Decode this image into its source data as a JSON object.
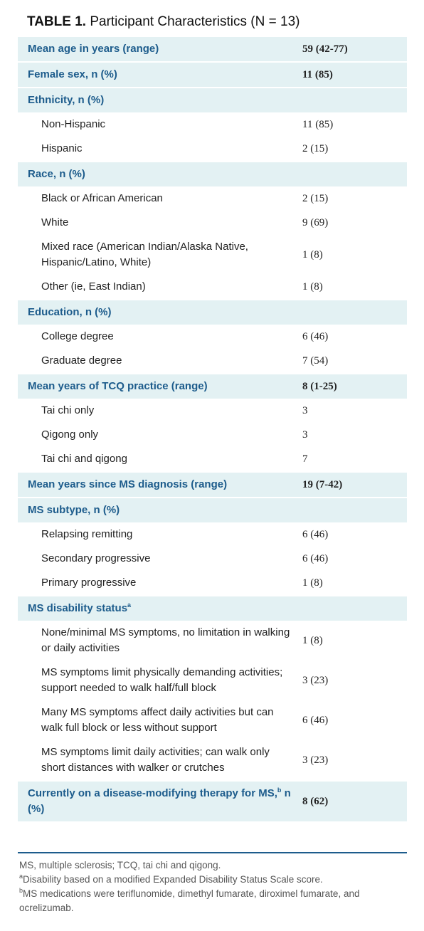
{
  "title": {
    "label": "TABLE 1.",
    "text": "Participant Characteristics (N = 13)"
  },
  "table": {
    "rows": [
      {
        "type": "header",
        "label": "Mean age in years (range)",
        "value": "59 (42-77)"
      },
      {
        "type": "header",
        "label": "Female sex, n (%)",
        "value": "11 (85)"
      },
      {
        "type": "header",
        "label": "Ethnicity, n (%)"
      },
      {
        "type": "item",
        "label": "Non-Hispanic",
        "value": "11 (85)"
      },
      {
        "type": "item",
        "label": "Hispanic",
        "value": "2 (15)"
      },
      {
        "type": "header",
        "label": "Race, n (%)"
      },
      {
        "type": "item",
        "label": "Black or African American",
        "value": "2 (15)"
      },
      {
        "type": "item",
        "label": "White",
        "value": "9 (69)"
      },
      {
        "type": "item",
        "label": "Mixed race (American Indian/Alaska Native, Hispanic/Latino, White)",
        "value": "1 (8)"
      },
      {
        "type": "item",
        "label": "Other (ie, East Indian)",
        "value": "1 (8)"
      },
      {
        "type": "header",
        "label": "Education, n (%)"
      },
      {
        "type": "item",
        "label": "College degree",
        "value": "6 (46)"
      },
      {
        "type": "item",
        "label": "Graduate degree",
        "value": "7 (54)"
      },
      {
        "type": "header",
        "label": "Mean years of TCQ practice (range)",
        "value": "8 (1-25)"
      },
      {
        "type": "item",
        "label": "Tai chi only",
        "value": "3"
      },
      {
        "type": "item",
        "label": "Qigong only",
        "value": "3"
      },
      {
        "type": "item",
        "label": "Tai chi and qigong",
        "value": "7"
      },
      {
        "type": "header",
        "label": "Mean years since MS diagnosis (range)",
        "value": "19 (7-42)"
      },
      {
        "type": "header",
        "label": "MS subtype, n (%)"
      },
      {
        "type": "item",
        "label": "Relapsing remitting",
        "value": "6 (46)"
      },
      {
        "type": "item",
        "label": "Secondary progressive",
        "value": "6 (46)"
      },
      {
        "type": "item",
        "label": "Primary progressive",
        "value": "1 (8)"
      },
      {
        "type": "header",
        "label": "MS disability status",
        "sup": "a"
      },
      {
        "type": "item",
        "label": "None/minimal MS symptoms, no limitation in walking or daily activities",
        "value": "1 (8)"
      },
      {
        "type": "item",
        "label": "MS symptoms limit physically demanding activities; support needed to walk half/full block",
        "value": "3 (23)"
      },
      {
        "type": "item",
        "label": "Many MS symptoms affect daily activities but can walk full block or less without support",
        "value": "6 (46)"
      },
      {
        "type": "item",
        "label": "MS symptoms limit daily activities; can walk only short distances with walker or crutches",
        "value": "3 (23)"
      },
      {
        "type": "header",
        "label": "Currently on a disease-modifying therapy for MS,",
        "sup": "b",
        "suffix": " n (%)",
        "value": "8 (62)"
      }
    ]
  },
  "footnotes": [
    {
      "text": "MS, multiple sclerosis; TCQ, tai chi and qigong."
    },
    {
      "marker": "a",
      "text": "Disability based on a modified Expanded Disability Status Scale score."
    },
    {
      "marker": "b",
      "text": "MS medications were teriflunomide, dimethyl fumarate, diroximel fumarate, and ocrelizumab."
    }
  ]
}
